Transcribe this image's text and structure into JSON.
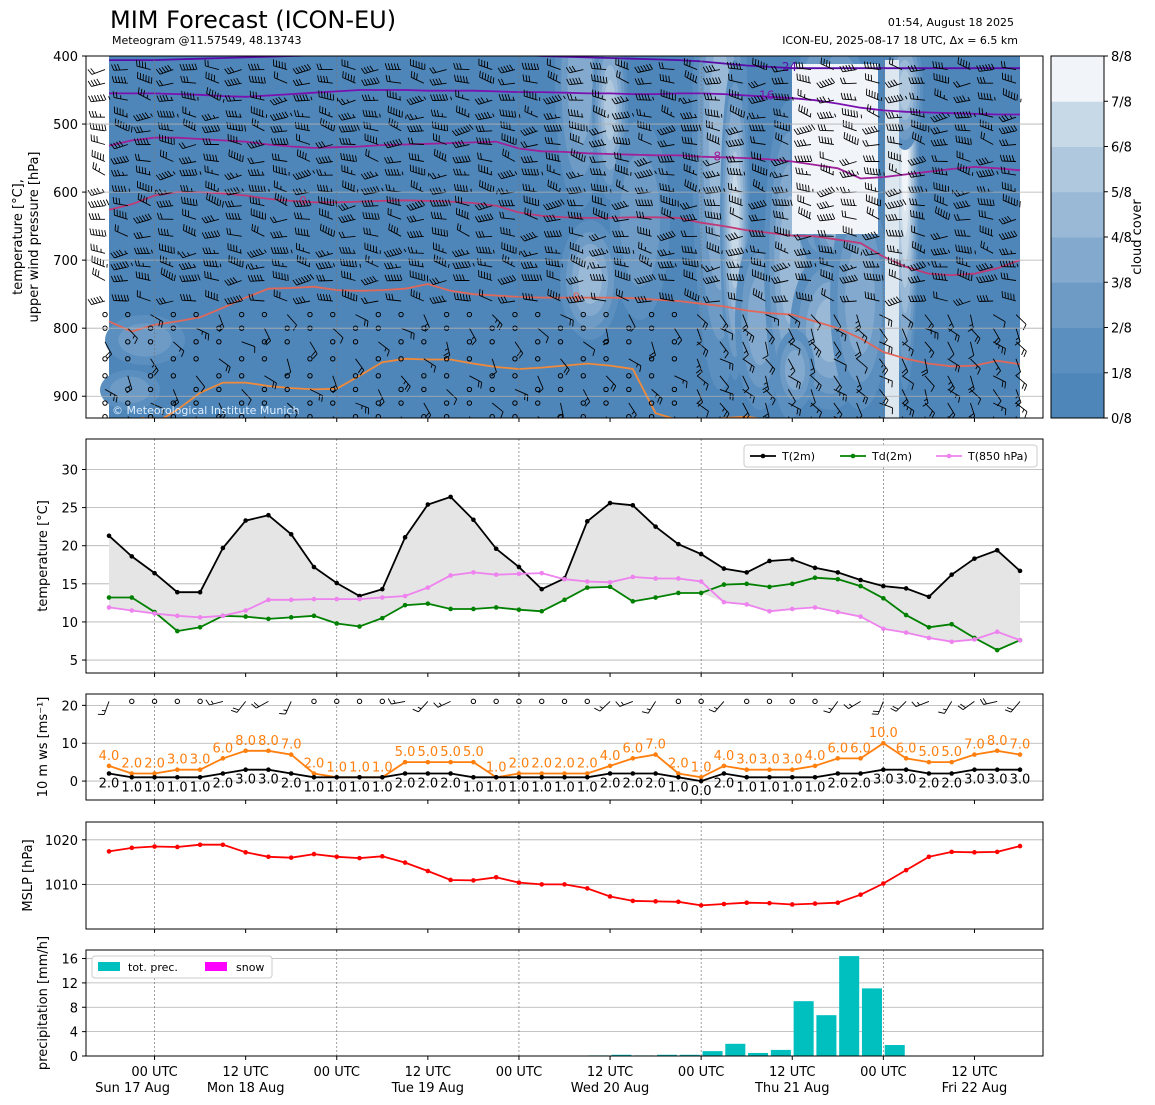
{
  "header": {
    "title": "MIM Forecast (ICON-EU)",
    "subtitle": "Meteogram @11.57549, 48.13743",
    "issued": "01:54, August 18 2025",
    "model_run": "ICON-EU, 2025-08-17 18 UTC, Δx = 6.5 km",
    "copyright": "© Meteorological Institute Munich"
  },
  "colors": {
    "cloud_scale": [
      "#4f86b9",
      "#5b8fbf",
      "#6d9bc6",
      "#83aace",
      "#9ab9d6",
      "#b0c8de",
      "#c7d8e7",
      "#dde7f0",
      "#f1f5f9"
    ],
    "t2m": "#000000",
    "td2m": "#008000",
    "t850": "#ee82ee",
    "ws": "#ff7f0e",
    "wsmean": "#000000",
    "mslp": "#ff0000",
    "precip": "#00bfbf",
    "snow": "#ff00ff",
    "envelope": "#e5e5e5"
  },
  "time_axis": {
    "ticks": [
      {
        "h": 6,
        "label": "00 UTC",
        "date": "Sun 17 Aug"
      },
      {
        "h": 18,
        "label": "12 UTC",
        "date": "Mon 18 Aug"
      },
      {
        "h": 30,
        "label": "00 UTC",
        "date": ""
      },
      {
        "h": 42,
        "label": "12 UTC",
        "date": "Tue 19 Aug"
      },
      {
        "h": 54,
        "label": "00 UTC",
        "date": ""
      },
      {
        "h": 66,
        "label": "12 UTC",
        "date": "Wed 20 Aug"
      },
      {
        "h": 78,
        "label": "00 UTC",
        "date": ""
      },
      {
        "h": 90,
        "label": "12 UTC",
        "date": "Thu 21 Aug"
      },
      {
        "h": 102,
        "label": "00 UTC",
        "date": ""
      },
      {
        "h": 114,
        "label": "12 UTC",
        "date": "Fri 22 Aug"
      }
    ],
    "day_lines": [
      6,
      30,
      54,
      78,
      102
    ]
  },
  "chart_data": [
    {
      "type": "heatmap",
      "name": "cloud_cover",
      "ylabel": "temperature [°C], upper wind pressure [hPa]",
      "yticks": [
        400,
        500,
        600,
        700,
        800,
        900
      ],
      "ylim": [
        932,
        400
      ],
      "colorbar": {
        "label": "cloud cover",
        "ticks": [
          "0/8",
          "1/8",
          "2/8",
          "3/8",
          "4/8",
          "5/8",
          "6/8",
          "7/8",
          "8/8"
        ]
      },
      "isotherms": [
        {
          "label": "-24",
          "color": "#5a0aa8",
          "pressure": [
            406,
            406,
            406,
            405,
            404,
            403,
            402,
            401,
            400,
            399,
            398,
            397,
            396,
            395,
            395,
            395,
            395,
            396,
            398,
            400,
            401,
            402,
            403,
            404,
            405,
            406,
            408,
            411,
            414,
            416,
            418,
            418,
            418,
            418,
            418,
            418,
            418,
            418,
            418,
            418,
            418
          ]
        },
        {
          "label": "-16",
          "color": "#7a10b0",
          "pressure": [
            455,
            455,
            455,
            456,
            457,
            459,
            460,
            458,
            456,
            454,
            452,
            450,
            450,
            450,
            451,
            451,
            451,
            452,
            453,
            453,
            454,
            455,
            455,
            456,
            456,
            455,
            455,
            456,
            458,
            460,
            462,
            465,
            470,
            476,
            480,
            482,
            483,
            484,
            485,
            486,
            486
          ]
        },
        {
          "label": "-8",
          "color": "#a0209a",
          "pressure": [
            532,
            524,
            520,
            520,
            522,
            524,
            526,
            530,
            533,
            535,
            534,
            533,
            531,
            530,
            529,
            528,
            527,
            526,
            536,
            540,
            541,
            543,
            544,
            545,
            546,
            546,
            548,
            549,
            550,
            552,
            555,
            560,
            565,
            580,
            578,
            574,
            570,
            566,
            563,
            565,
            568
          ]
        },
        {
          "label": "0",
          "color": "#c03a78",
          "pressure": [
            626,
            618,
            605,
            600,
            600,
            602,
            605,
            610,
            613,
            615,
            615,
            614,
            613,
            612,
            613,
            614,
            616,
            620,
            630,
            635,
            637,
            638,
            638,
            637,
            637,
            638,
            645,
            650,
            656,
            660,
            664,
            665,
            670,
            675,
            695,
            710,
            720,
            722,
            720,
            712,
            700
          ]
        },
        {
          "label": "8",
          "color": "#e0685a",
          "pressure": [
            790,
            805,
            795,
            790,
            784,
            770,
            755,
            742,
            741,
            739,
            744,
            745,
            744,
            742,
            735,
            745,
            750,
            752,
            754,
            755,
            755,
            755,
            755,
            756,
            758,
            760,
            764,
            768,
            774,
            778,
            780,
            790,
            800,
            815,
            835,
            845,
            852,
            856,
            855,
            848,
            853
          ]
        },
        {
          "label": "16",
          "color": "#f08a3a",
          "pressure": [
            935,
            938,
            940,
            920,
            895,
            880,
            880,
            885,
            888,
            890,
            889,
            870,
            850,
            845,
            846,
            846,
            852,
            857,
            860,
            858,
            855,
            852,
            855,
            860,
            925,
            935,
            935,
            932,
            930,
            935,
            940,
            940,
            940,
            940,
            940,
            940,
            940,
            940,
            940,
            940,
            940
          ]
        }
      ]
    },
    {
      "type": "line",
      "name": "temperature",
      "ylabel": "temperature [°C]",
      "ylim": [
        3.3,
        34
      ],
      "yticks": [
        5,
        10,
        15,
        20,
        25,
        30
      ],
      "legend": "top-right",
      "series": [
        {
          "name": "T(2m)",
          "values": [
            21.3,
            18.6,
            16.4,
            13.9,
            13.9,
            19.7,
            23.3,
            24.0,
            21.5,
            17.2,
            15.1,
            13.4,
            14.3,
            21.1,
            25.4,
            26.4,
            23.4,
            19.6,
            17.2,
            14.3,
            15.7,
            23.2,
            25.6,
            25.3,
            22.5,
            20.2,
            18.9,
            17.0,
            16.5,
            18.0,
            18.2,
            17.1,
            16.5,
            15.5,
            14.7,
            14.4,
            13.3,
            16.2,
            18.3,
            19.4,
            16.7
          ]
        },
        {
          "name": "Td(2m)",
          "values": [
            13.2,
            13.2,
            11.3,
            8.8,
            9.3,
            10.8,
            10.7,
            10.4,
            10.6,
            10.8,
            9.8,
            9.4,
            10.5,
            12.2,
            12.4,
            11.7,
            11.7,
            11.9,
            11.6,
            11.4,
            12.9,
            14.5,
            14.6,
            12.7,
            13.2,
            13.8,
            13.8,
            14.9,
            15.0,
            14.6,
            15.0,
            15.8,
            15.6,
            14.7,
            13.1,
            10.9,
            9.3,
            9.7,
            7.9,
            6.3,
            7.6
          ]
        },
        {
          "name": "T(850 hPa)",
          "values": [
            11.9,
            11.5,
            11.1,
            10.8,
            10.6,
            10.8,
            11.5,
            12.9,
            12.9,
            13.0,
            13.0,
            13.0,
            13.2,
            13.4,
            14.5,
            16.1,
            16.5,
            16.2,
            16.3,
            16.4,
            15.6,
            15.3,
            15.2,
            15.9,
            15.7,
            15.7,
            15.3,
            12.6,
            12.3,
            11.4,
            11.7,
            11.9,
            11.3,
            10.7,
            9.1,
            8.6,
            7.9,
            7.4,
            7.7,
            8.7,
            7.6
          ]
        }
      ]
    },
    {
      "type": "line",
      "name": "wind",
      "ylabel": "10 m ws [ms⁻¹]",
      "ylim": [
        -5,
        23
      ],
      "yticks": [
        0,
        10,
        20
      ],
      "series": [
        {
          "name": "gust",
          "values": [
            4.0,
            2.0,
            2.0,
            3.0,
            3.0,
            6.0,
            8.0,
            8.0,
            7.0,
            2.0,
            1.0,
            1.0,
            1.0,
            5.0,
            5.0,
            5.0,
            5.0,
            1.0,
            2.0,
            2.0,
            2.0,
            2.0,
            4.0,
            6.0,
            7.0,
            2.0,
            1.0,
            4.0,
            3.0,
            3.0,
            3.0,
            4.0,
            6.0,
            6.0,
            10.0,
            6.0,
            5.0,
            5.0,
            7.0,
            8.0,
            7.0
          ]
        },
        {
          "name": "mean",
          "values": [
            2.0,
            1.0,
            1.0,
            1.0,
            1.0,
            2.0,
            3.0,
            3.0,
            2.0,
            1.0,
            1.0,
            1.0,
            1.0,
            2.0,
            2.0,
            2.0,
            1.0,
            1.0,
            1.0,
            1.0,
            1.0,
            1.0,
            2.0,
            2.0,
            2.0,
            1.0,
            0.0,
            2.0,
            1.0,
            1.0,
            1.0,
            1.0,
            2.0,
            2.0,
            3.0,
            3.0,
            2.0,
            2.0,
            3.0,
            3.0,
            3.0
          ]
        }
      ]
    },
    {
      "type": "line",
      "name": "pressure",
      "ylabel": "MSLP [hPa]",
      "ylim": [
        1000,
        1024
      ],
      "yticks": [
        1010,
        1020
      ],
      "series": [
        {
          "name": "MSLP",
          "values": [
            1017.4,
            1018.2,
            1018.5,
            1018.4,
            1018.9,
            1018.9,
            1017.2,
            1016.2,
            1016.0,
            1016.8,
            1016.2,
            1015.9,
            1016.3,
            1014.9,
            1013.0,
            1011.0,
            1010.9,
            1011.6,
            1010.4,
            1010.0,
            1010.0,
            1009.1,
            1007.3,
            1006.3,
            1006.2,
            1006.1,
            1005.3,
            1005.6,
            1005.9,
            1005.8,
            1005.5,
            1005.7,
            1005.9,
            1007.7,
            1010.2,
            1013.2,
            1016.2,
            1017.3,
            1017.2,
            1017.3,
            1018.6
          ]
        }
      ]
    },
    {
      "type": "bar",
      "name": "precipitation",
      "ylabel": "precipitation [mm/h]",
      "ylim": [
        0,
        17.4
      ],
      "yticks": [
        0,
        4,
        8,
        12,
        16
      ],
      "legend": "top-left",
      "series": [
        {
          "name": "tot. prec.",
          "values": [
            0,
            0,
            0,
            0,
            0,
            0,
            0,
            0,
            0,
            0,
            0,
            0,
            0,
            0,
            0,
            0,
            0,
            0,
            0,
            0,
            0,
            0.1,
            0.2,
            0.1,
            0.2,
            0.2,
            0.8,
            2.0,
            0.5,
            1.0,
            9.0,
            6.7,
            16.4,
            11.1,
            1.8,
            0,
            0,
            0,
            0,
            0
          ]
        },
        {
          "name": "snow",
          "values": []
        }
      ]
    }
  ]
}
